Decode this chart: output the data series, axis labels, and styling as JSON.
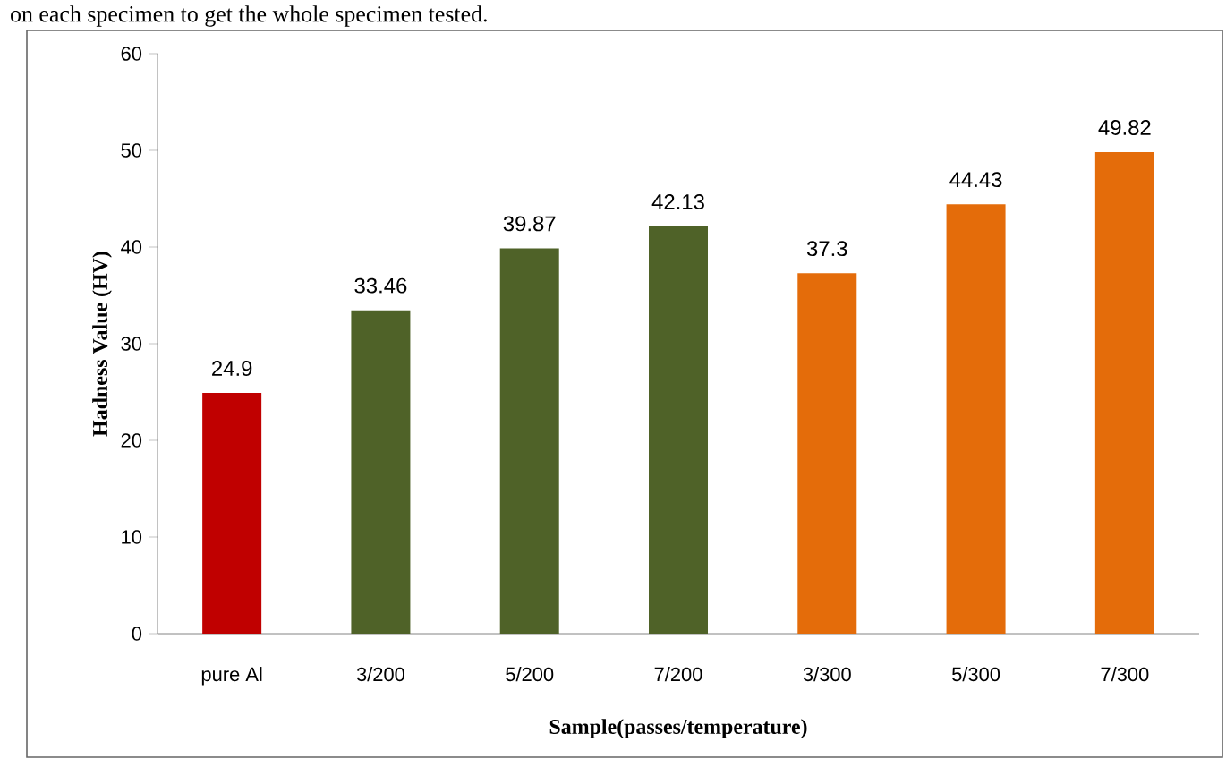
{
  "chart_data": {
    "type": "bar",
    "annotations": [
      "on each specimen to get the whole specimen tested."
    ],
    "xlabel": "Sample(passes/temperature)",
    "ylabel": "Hadness Value (HV)",
    "categories": [
      "pure Al",
      "3/200",
      "5/200",
      "7/200",
      "3/300",
      "5/300",
      "7/300"
    ],
    "values": [
      24.9,
      33.46,
      39.87,
      42.13,
      37.3,
      44.43,
      49.82
    ],
    "colors": [
      "#c00000",
      "#4f6228",
      "#4f6228",
      "#4f6228",
      "#e46c0a",
      "#e46c0a",
      "#e46c0a"
    ],
    "ylim": [
      0,
      60
    ],
    "yticks": [
      0,
      10,
      20,
      30,
      40,
      50,
      60
    ],
    "data_labels": true,
    "grid": false
  }
}
